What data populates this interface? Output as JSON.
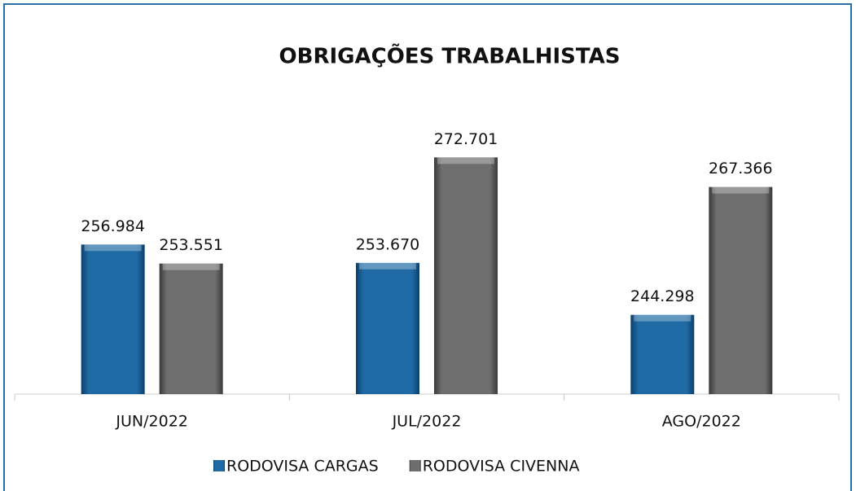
{
  "chart_data": {
    "type": "bar",
    "title": "OBRIGAÇÕES TRABALHISTAS",
    "categories": [
      "JUN/2022",
      "JUL/2022",
      "AGO/2022"
    ],
    "series": [
      {
        "name": "RODOVISA CARGAS",
        "color": "#1f6aa5",
        "values": [
          256984,
          253670,
          244298
        ],
        "value_labels": [
          "256.984",
          "253.670",
          "244.298"
        ]
      },
      {
        "name": "RODOVISA CIVENNA",
        "color": "#6e6e6e",
        "values": [
          253551,
          272701,
          267366
        ],
        "value_labels": [
          "253.551",
          "272.701",
          "267.366"
        ]
      }
    ],
    "ylim": [
      230000,
      282000
    ],
    "legend": "bottom"
  }
}
